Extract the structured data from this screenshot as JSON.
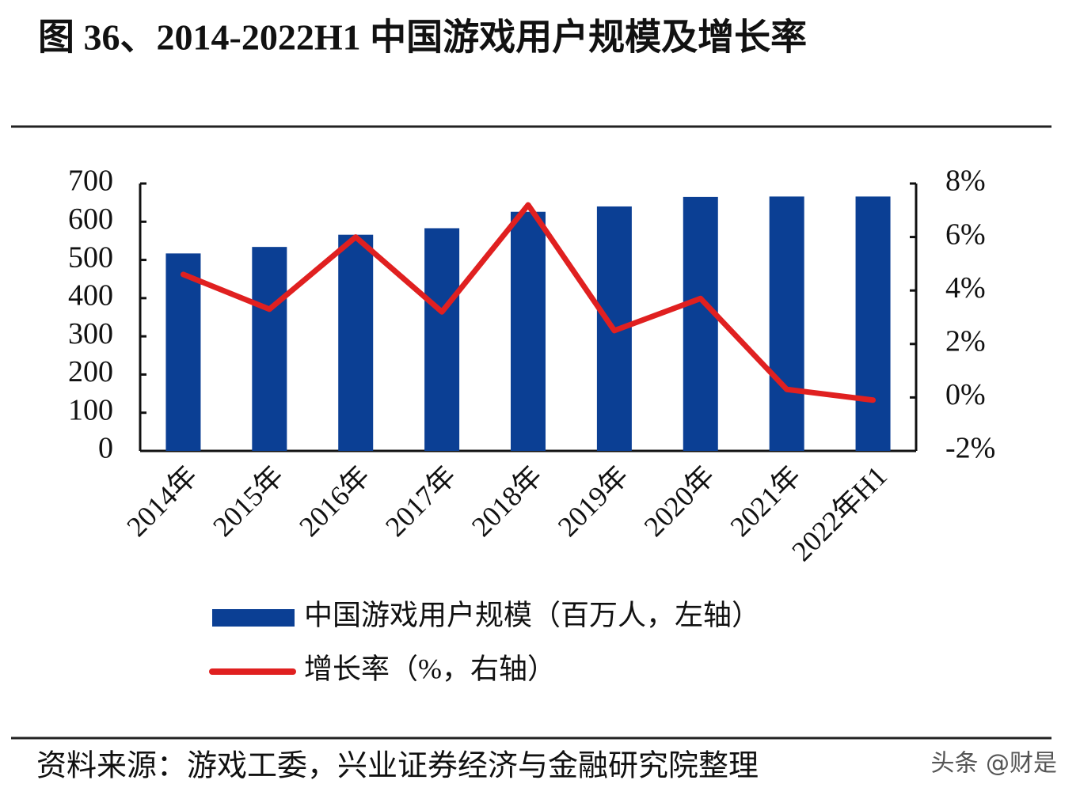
{
  "chart_data": {
    "type": "bar-line",
    "title": "图 36、2014-2022H1 中国游戏用户规模及增长率",
    "categories": [
      "2014年",
      "2015年",
      "2016年",
      "2017年",
      "2018年",
      "2019年",
      "2020年",
      "2021年",
      "2022年H1"
    ],
    "series": [
      {
        "name": "中国游戏用户规模（百万人，左轴）",
        "type": "bar",
        "color": "#0b3f94",
        "values": [
          517,
          534,
          566,
          583,
          626,
          640,
          665,
          666,
          666
        ]
      },
      {
        "name": "增长率（%，右轴）",
        "type": "line",
        "axis": "y2",
        "color": "#e02020",
        "values": [
          4.6,
          3.3,
          6.0,
          3.2,
          7.2,
          2.5,
          3.7,
          0.3,
          -0.1
        ]
      }
    ],
    "ylim": [
      0,
      700
    ],
    "yticks": [
      0,
      100,
      200,
      300,
      400,
      500,
      600,
      700
    ],
    "y2lim": [
      -2,
      8
    ],
    "y2ticks": [
      {
        "value": -2,
        "label": "-2%"
      },
      {
        "value": 0,
        "label": "0%"
      },
      {
        "value": 2,
        "label": "2%"
      },
      {
        "value": 4,
        "label": "4%"
      },
      {
        "value": 6,
        "label": "6%"
      },
      {
        "value": 8,
        "label": "8%"
      }
    ],
    "source": "资料来源：游戏工委，兴业证券经济与金融研究院整理",
    "watermark": "头条 @财是"
  }
}
